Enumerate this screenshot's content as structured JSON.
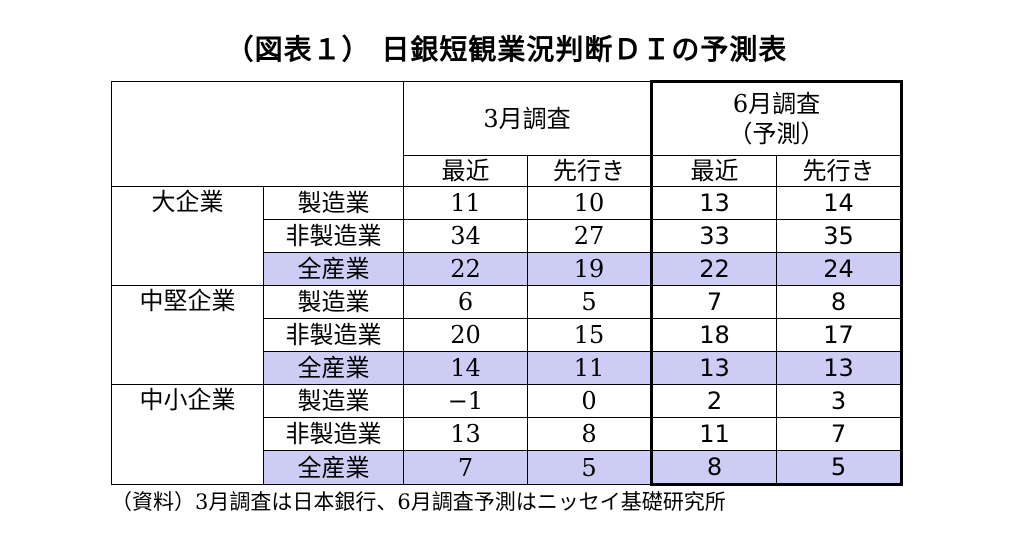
{
  "title": "（図表１） 日銀短観業況判断ＤＩの予測表",
  "source": "（資料）3月調査は日本銀行、6月調査予測はニッセイ基礎研究所",
  "colors": {
    "highlight": "#ccccf5",
    "border": "#000000"
  },
  "chart_data": {
    "type": "table",
    "header": {
      "march": "3月調査",
      "june_line1": "6月調査",
      "june_line2": "（予測）",
      "recent": "最近",
      "outlook": "先行き"
    },
    "groups": [
      {
        "name": "大企業",
        "rows": [
          {
            "sector": "製造業",
            "values": [
              "11",
              "10",
              "13",
              "14"
            ]
          },
          {
            "sector": "非製造業",
            "values": [
              "34",
              "27",
              "33",
              "35"
            ]
          },
          {
            "sector": "全産業",
            "values": [
              "22",
              "19",
              "22",
              "24"
            ]
          }
        ]
      },
      {
        "name": "中堅企業",
        "rows": [
          {
            "sector": "製造業",
            "values": [
              "6",
              "5",
              "7",
              "8"
            ]
          },
          {
            "sector": "非製造業",
            "values": [
              "20",
              "15",
              "18",
              "17"
            ]
          },
          {
            "sector": "全産業",
            "values": [
              "14",
              "11",
              "13",
              "13"
            ]
          }
        ]
      },
      {
        "name": "中小企業",
        "rows": [
          {
            "sector": "製造業",
            "values": [
              "−1",
              "0",
              "2",
              "3"
            ]
          },
          {
            "sector": "非製造業",
            "values": [
              "13",
              "8",
              "11",
              "7"
            ]
          },
          {
            "sector": "全産業",
            "values": [
              "7",
              "5",
              "8",
              "5"
            ]
          }
        ]
      }
    ]
  }
}
